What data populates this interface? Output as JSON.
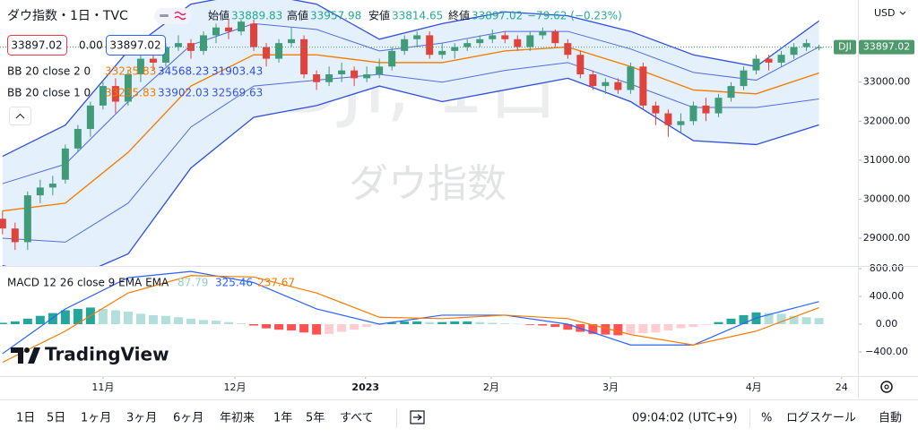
{
  "chart_data": [
    {
      "type": "candlestick",
      "title": "ダウ指数・1日・TVC",
      "watermark": "DJI, 1日",
      "watermark_sub": "ダウ指数",
      "currency": "USD",
      "ohlc_legend": [
        {
          "label": "始値",
          "value": 33889.83
        },
        {
          "label": "高値",
          "value": 33957.98
        },
        {
          "label": "安値",
          "value": 33814.65
        },
        {
          "label": "終値",
          "value": 33897.02
        }
      ],
      "change": "−79.62 (−0.23%)",
      "price_boxes": [
        "33897.02",
        "0.00",
        "33897.02"
      ],
      "last_label": {
        "name": "DJI",
        "value": 33897.02,
        "color": "#4f9a6c"
      },
      "up_color": "#3f9b78",
      "down_color": "#e0433c",
      "xlim": [
        -0.2,
        68.1
      ],
      "ylim": [
        28290,
        34990
      ],
      "yticks": [
        {
          "value": 29000,
          "label": "29000.00"
        },
        {
          "value": 30000,
          "label": "30000.00"
        },
        {
          "value": 31000,
          "label": "31000.00"
        },
        {
          "value": 32000,
          "label": "32000.00"
        },
        {
          "value": 33000,
          "label": "33000.00"
        }
      ],
      "ohlc": [
        [
          29500,
          29700,
          29100,
          29250
        ],
        [
          29250,
          29400,
          28700,
          28900
        ],
        [
          28900,
          30200,
          28700,
          30100
        ],
        [
          30100,
          30500,
          29900,
          30300
        ],
        [
          30300,
          30600,
          30100,
          30400
        ],
        [
          30500,
          31400,
          30400,
          31300
        ],
        [
          31300,
          31900,
          31200,
          31800
        ],
        [
          31800,
          32500,
          31600,
          32400
        ],
        [
          32400,
          33000,
          32300,
          32900
        ],
        [
          32900,
          33100,
          32200,
          32500
        ],
        [
          32500,
          33300,
          32400,
          33200
        ],
        [
          33200,
          33700,
          33000,
          33600
        ],
        [
          33600,
          33800,
          33300,
          33500
        ],
        [
          33500,
          34000,
          33400,
          33900
        ],
        [
          33900,
          34200,
          33800,
          34000
        ],
        [
          34000,
          34100,
          33600,
          33800
        ],
        [
          33800,
          34300,
          33700,
          34200
        ],
        [
          34200,
          34500,
          34000,
          34400
        ],
        [
          34400,
          34600,
          34100,
          34300
        ],
        [
          34300,
          34600,
          34200,
          34550
        ],
        [
          34500,
          34600,
          33800,
          33900
        ],
        [
          33900,
          34000,
          33400,
          33600
        ],
        [
          33600,
          34100,
          33500,
          34000
        ],
        [
          34000,
          34400,
          33900,
          34100
        ],
        [
          34100,
          34200,
          33100,
          33200
        ],
        [
          33200,
          33300,
          32800,
          33000
        ],
        [
          33000,
          33400,
          32900,
          33200
        ],
        [
          33200,
          33500,
          33000,
          33300
        ],
        [
          33300,
          33400,
          32900,
          33100
        ],
        [
          33100,
          33400,
          33000,
          33200
        ],
        [
          33200,
          33600,
          33100,
          33400
        ],
        [
          33400,
          33900,
          33300,
          33800
        ],
        [
          33800,
          34200,
          33700,
          34100
        ],
        [
          34100,
          34300,
          33900,
          34200
        ],
        [
          34200,
          34300,
          33600,
          33700
        ],
        [
          33700,
          34000,
          33600,
          33800
        ],
        [
          33800,
          34000,
          33600,
          33900
        ],
        [
          33900,
          34100,
          33800,
          34000
        ],
        [
          34000,
          34200,
          33900,
          34100
        ],
        [
          34100,
          34350,
          34000,
          34200
        ],
        [
          34200,
          34300,
          34000,
          34100
        ],
        [
          34100,
          34200,
          33800,
          33900
        ],
        [
          33900,
          34300,
          33800,
          34200
        ],
        [
          34200,
          34400,
          34100,
          34300
        ],
        [
          34300,
          34350,
          33900,
          34000
        ],
        [
          34000,
          34100,
          33600,
          33700
        ],
        [
          33700,
          33800,
          33100,
          33200
        ],
        [
          33200,
          33300,
          32800,
          32900
        ],
        [
          32900,
          33100,
          32700,
          33000
        ],
        [
          33000,
          33100,
          32700,
          32800
        ],
        [
          32800,
          33500,
          32700,
          33400
        ],
        [
          33400,
          33500,
          32300,
          32400
        ],
        [
          32400,
          32500,
          31900,
          32200
        ],
        [
          32200,
          32300,
          31600,
          31900
        ],
        [
          31900,
          32200,
          31700,
          32000
        ],
        [
          32000,
          32500,
          31900,
          32400
        ],
        [
          32400,
          32600,
          32000,
          32200
        ],
        [
          32200,
          32700,
          32100,
          32600
        ],
        [
          32600,
          33000,
          32500,
          32900
        ],
        [
          32900,
          33400,
          32800,
          33300
        ],
        [
          33300,
          33700,
          33200,
          33600
        ],
        [
          33600,
          33700,
          33300,
          33500
        ],
        [
          33500,
          33800,
          33400,
          33700
        ],
        [
          33700,
          34000,
          33600,
          33900
        ],
        [
          33900,
          34100,
          33800,
          34000
        ],
        [
          33889.83,
          33957.98,
          33814.65,
          33897.02
        ]
      ],
      "band_x": [
        0,
        5,
        10,
        15,
        20,
        25,
        30,
        35,
        40,
        45,
        50,
        55,
        60,
        65
      ],
      "band_fill": "#e4f0fb",
      "indicators": [
        {
          "name": "BB 20 close 2 0",
          "series": [
            {
              "color": "#f57c00",
              "values": [
                29700,
                29900,
                31200,
                32900,
                33700,
                33700,
                33500,
                33500,
                33800,
                33900,
                33400,
                32800,
                32700,
                33235.83
              ]
            },
            {
              "color": "#2f4fe0",
              "values": [
                31100,
                31900,
                33800,
                35000,
                35300,
                35000,
                34100,
                34500,
                34800,
                34700,
                34300,
                33700,
                33400,
                34568.23
              ]
            },
            {
              "color": "#2f4fe0",
              "values": [
                28300,
                27900,
                28600,
                30800,
                32100,
                32400,
                32900,
                32500,
                32800,
                33100,
                32500,
                31500,
                31400,
                31903.43
              ]
            }
          ]
        },
        {
          "name": "BB 20 close 1 0",
          "series": [
            {
              "color": "#f57c00",
              "values": [
                29700,
                29900,
                31200,
                32900,
                33700,
                33700,
                33500,
                33500,
                33800,
                33900,
                33400,
                32800,
                32700,
                33235.83
              ]
            },
            {
              "color": "#3a55d8",
              "values": [
                30400,
                30900,
                32500,
                33950,
                34500,
                34350,
                33800,
                34000,
                34300,
                34300,
                33850,
                33250,
                33050,
                33902.03
              ]
            },
            {
              "color": "#3a55d8",
              "values": [
                29000,
                28900,
                29900,
                31850,
                32900,
                33050,
                33200,
                33000,
                33300,
                33500,
                32950,
                32350,
                32350,
                32569.63
              ]
            }
          ]
        }
      ]
    },
    {
      "type": "macd",
      "title": "MACD 12 26 close 9 EMA EMA",
      "xlim": [
        -0.2,
        68.1
      ],
      "ylim": [
        -684,
        839
      ],
      "yticks": [
        {
          "value": 800,
          "label": "800.00"
        },
        {
          "value": 400,
          "label": "400.00"
        },
        {
          "value": 0,
          "label": "0.00"
        },
        {
          "value": -400,
          "label": "−400.00"
        }
      ],
      "xticks": [
        {
          "value": 8,
          "label": "11月"
        },
        {
          "value": 18.5,
          "label": "12月"
        },
        {
          "value": 28.9,
          "label": "2023"
        },
        {
          "value": 38.9,
          "label": "2月"
        },
        {
          "value": 48.4,
          "label": "3月"
        },
        {
          "value": 59.8,
          "label": "4月"
        },
        {
          "value": 66.8,
          "label": "24"
        }
      ],
      "histogram": {
        "color_up": "#26a69a",
        "color_up_fade": "#b2dfdb",
        "color_down": "#ff5252",
        "color_down_fade": "#ffcdd2",
        "values": [
          20,
          40,
          80,
          120,
          160,
          200,
          220,
          240,
          220,
          200,
          180,
          150,
          130,
          120,
          100,
          80,
          60,
          50,
          30,
          10,
          -20,
          -60,
          -80,
          -90,
          -120,
          -150,
          -140,
          -110,
          -80,
          -40,
          -10,
          20,
          40,
          40,
          30,
          30,
          40,
          40,
          30,
          20,
          10,
          5,
          -10,
          -20,
          -40,
          -80,
          -110,
          -140,
          -150,
          -160,
          -140,
          -130,
          -120,
          -90,
          -60,
          -40,
          -10,
          30,
          80,
          130,
          170,
          160,
          150,
          120,
          100,
          87.79
        ]
      },
      "line_x": [
        0,
        5,
        10,
        15,
        20,
        25,
        30,
        35,
        40,
        45,
        50,
        55,
        60,
        65
      ],
      "lines": [
        {
          "color": "#2962ff",
          "values": [
            -425,
            220,
            670,
            760,
            600,
            220,
            0,
            130,
            130,
            0,
            -300,
            -300,
            90,
            325.46
          ]
        },
        {
          "color": "#f57c00",
          "values": [
            -550,
            -100,
            450,
            700,
            680,
            450,
            100,
            80,
            130,
            80,
            -150,
            -300,
            -100,
            237.67
          ]
        }
      ]
    }
  ],
  "branding": "TradingView",
  "toolbar": {
    "ranges": [
      "1日",
      "5日",
      "1ヶ月",
      "3ヶ月",
      "6ヶ月",
      "年初来",
      "1年",
      "5年",
      "すべて"
    ],
    "clock": "09:04:02 (UTC+9)",
    "percent": "%",
    "log": "ログスケール",
    "auto": "自動"
  }
}
